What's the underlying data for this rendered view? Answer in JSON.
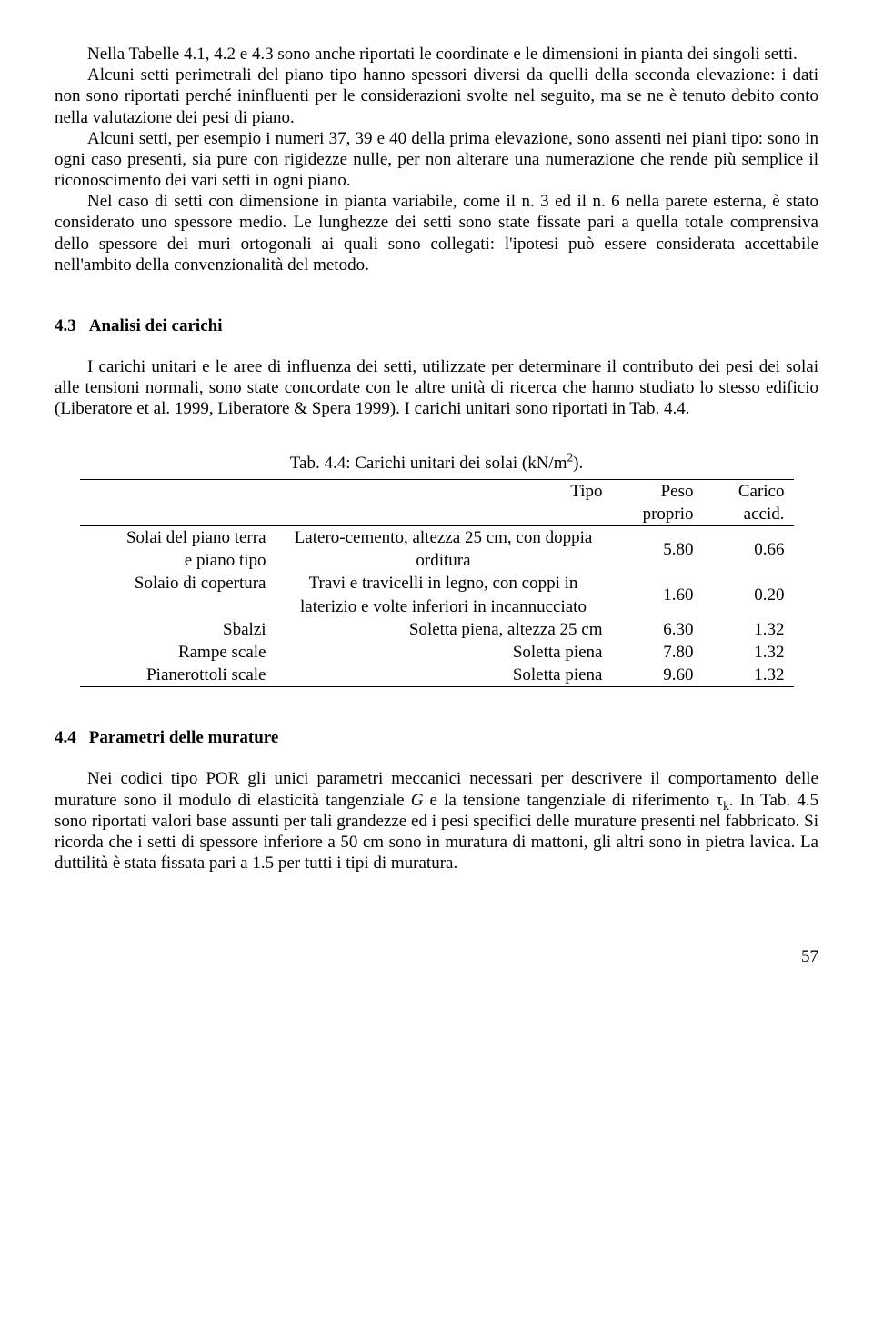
{
  "p1": "Nella Tabelle 4.1, 4.2 e 4.3 sono anche riportati le coordinate e le dimensioni in pianta dei singoli setti.",
  "p2": "Alcuni setti perimetrali del piano tipo hanno spessori diversi da quelli della seconda elevazione: i dati non sono riportati perché ininfluenti per le considerazioni svolte nel seguito, ma se ne è tenuto debito conto nella valutazione dei pesi di piano.",
  "p3": "Alcuni setti, per esempio i numeri 37, 39 e 40 della prima elevazione, sono assenti nei piani tipo: sono in ogni caso presenti, sia pure con rigidezze nulle, per non alterare una numerazione che rende più semplice il riconoscimento dei vari setti in ogni piano.",
  "p4": "Nel caso di setti con dimensione in pianta variabile, come il n. 3 ed il n. 6 nella parete esterna, è stato considerato uno spessore medio. Le lunghezze dei setti sono state fissate pari a quella totale comprensiva dello spessore dei muri ortogonali ai quali sono collegati: l'ipotesi può essere considerata accettabile nell'ambito della convenzionalità del metodo.",
  "sec43_num": "4.3",
  "sec43_title": "Analisi dei carichi",
  "p5": "I carichi unitari e le aree di influenza dei setti, utilizzate per determinare il contributo dei pesi dei solai alle tensioni normali, sono state concordate con le altre unità di ricerca che hanno studiato lo stesso edificio (Liberatore et al. 1999, Liberatore & Spera 1999). I carichi unitari sono riportati in Tab. 4.4.",
  "table_caption_pre": "Tab. 4.4: Carichi unitari dei solai (kN/m",
  "table_caption_sup": "2",
  "table_caption_post": ").",
  "th_tipo": "Tipo",
  "th_peso1": "Peso",
  "th_peso2": "proprio",
  "th_acc1": "Carico",
  "th_acc2": "accid.",
  "rows": [
    {
      "left1": "Solai del piano terra",
      "left2": "e piano tipo",
      "tipo1": "Latero-cemento, altezza 25 cm, con doppia",
      "tipo2": "orditura",
      "peso": "5.80",
      "acc": "0.66",
      "center_vals": true
    },
    {
      "left1": "Solaio di copertura",
      "left2": "",
      "tipo1": "Travi e travicelli in legno, con coppi in",
      "tipo2": "laterizio e volte inferiori in incannucciato",
      "peso": "1.60",
      "acc": "0.20",
      "center_vals": true
    },
    {
      "left1": "Sbalzi",
      "left2": "",
      "tipo1": "Soletta piena, altezza 25 cm",
      "tipo2": "",
      "peso": "6.30",
      "acc": "1.32",
      "center_vals": false
    },
    {
      "left1": "Rampe scale",
      "left2": "",
      "tipo1": "Soletta piena",
      "tipo2": "",
      "peso": "7.80",
      "acc": "1.32",
      "center_vals": false
    },
    {
      "left1": "Pianerottoli scale",
      "left2": "",
      "tipo1": "Soletta piena",
      "tipo2": "",
      "peso": "9.60",
      "acc": "1.32",
      "center_vals": false
    }
  ],
  "sec44_num": "4.4",
  "sec44_title": "Parametri delle murature",
  "p6_a": "Nei codici tipo POR gli unici parametri meccanici necessari per descrivere il comportamento delle murature sono il modulo di elasticità tangenziale ",
  "p6_G": "G",
  "p6_b": " e la tensione tangenziale di riferimento τ",
  "p6_sub": "k",
  "p6_c": ". In Tab. 4.5 sono riportati valori base assunti per tali grandezze ed i pesi specifici delle murature presenti nel fabbricato. Si ricorda che i setti di spessore inferiore a 50 cm sono in muratura di mattoni, gli altri sono in pietra lavica. La duttilità è stata fissata pari a 1.5 per tutti i tipi di muratura.",
  "page_num": "57"
}
